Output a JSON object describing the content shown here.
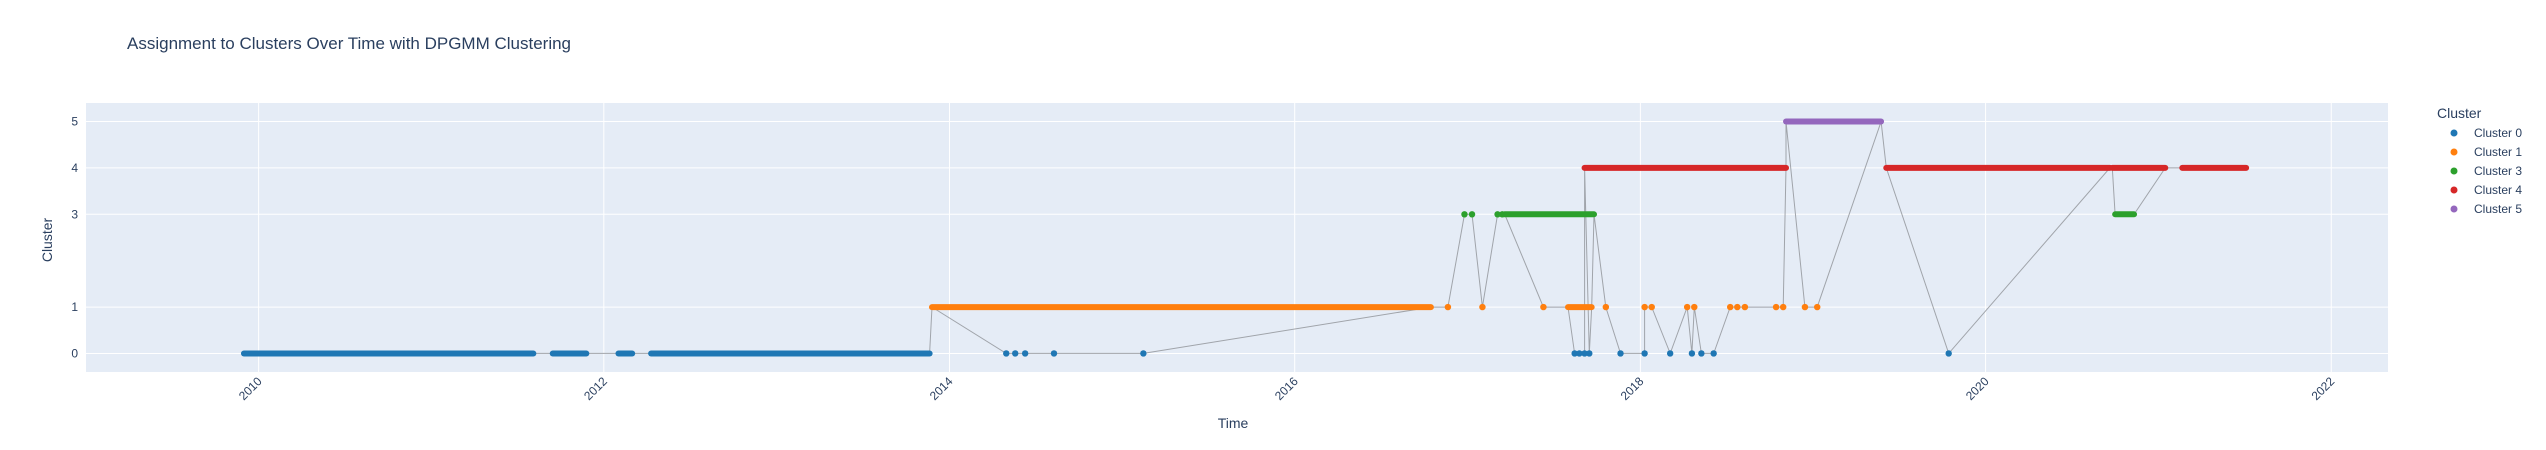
{
  "chart_data": {
    "type": "scatter",
    "title": "Assignment to Clusters Over Time with DPGMM Clustering",
    "xlabel": "Time",
    "ylabel": "Cluster",
    "xlim": [
      "2009-01-01",
      "2022-05-01"
    ],
    "ylim": [
      -0.4,
      5.4
    ],
    "x_ticks": [
      "2010",
      "2012",
      "2014",
      "2016",
      "2018",
      "2020",
      "2022"
    ],
    "y_ticks": [
      0,
      1,
      3,
      4,
      5
    ],
    "grid": true,
    "legend_title": "Cluster",
    "legend_position": "right",
    "colors": {
      "plot_bg": "#e5ecf6",
      "grid": "#ffffff",
      "line": "#a0a4aa",
      "Cluster 0": "#1f77b4",
      "Cluster 1": "#ff7f0e",
      "Cluster 3": "#2ca02c",
      "Cluster 4": "#d62728",
      "Cluster 5": "#9467bd"
    },
    "series": [
      {
        "name": "Cluster 0",
        "segments": [
          [
            "2009-12-01",
            "2011-08-05"
          ],
          [
            "2011-09-15",
            "2011-11-25"
          ],
          [
            "2012-02-01",
            "2012-03-01"
          ],
          [
            "2012-04-10",
            "2013-11-20"
          ]
        ],
        "points": [
          "2014-05-01",
          "2014-05-20",
          "2014-06-10",
          "2014-08-10",
          "2015-02-15",
          "2017-08-15",
          "2017-08-25",
          "2017-09-05",
          "2017-09-15",
          "2017-11-20",
          "2018-01-10",
          "2018-03-05",
          "2018-04-20",
          "2018-05-10",
          "2018-06-05",
          "2019-10-15"
        ]
      },
      {
        "name": "Cluster 1",
        "segments": [
          [
            "2013-11-25",
            "2016-10-15"
          ],
          [
            "2017-08-01",
            "2017-09-20"
          ]
        ],
        "points": [
          "2016-11-20",
          "2017-02-01",
          "2017-06-10",
          "2017-10-20",
          "2018-01-10",
          "2018-01-25",
          "2018-04-10",
          "2018-04-25",
          "2018-07-10",
          "2018-07-25",
          "2018-08-10",
          "2018-10-15",
          "2018-10-30",
          "2018-12-15",
          "2019-01-10"
        ]
      },
      {
        "name": "Cluster 3",
        "segments": [
          [
            "2017-03-20",
            "2017-09-25"
          ],
          [
            "2020-10-01",
            "2020-11-10"
          ]
        ],
        "points": [
          "2016-12-25",
          "2017-01-10",
          "2017-03-05",
          "2017-03-15"
        ]
      },
      {
        "name": "Cluster 4",
        "segments": [
          [
            "2017-09-05",
            "2018-11-05"
          ],
          [
            "2019-06-05",
            "2020-09-20"
          ],
          [
            "2020-09-25",
            "2021-01-15"
          ],
          [
            "2021-02-20",
            "2021-07-05"
          ]
        ],
        "points": []
      },
      {
        "name": "Cluster 5",
        "segments": [
          [
            "2018-11-05",
            "2019-05-25"
          ]
        ],
        "points": []
      }
    ]
  }
}
